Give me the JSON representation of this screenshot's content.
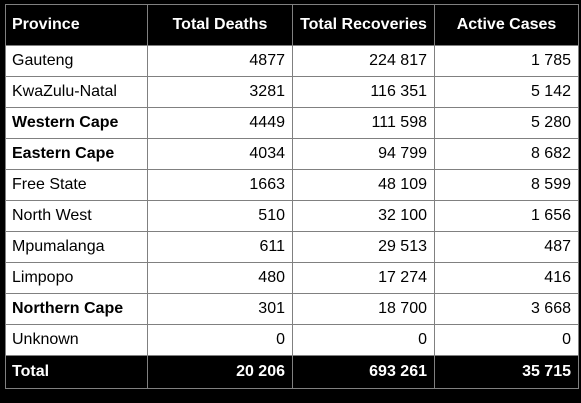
{
  "chart_data": {
    "type": "table",
    "columns": [
      "Province",
      "Total Deaths",
      "Total Recoveries",
      "Active Cases"
    ],
    "rows": [
      {
        "province": "Gauteng",
        "deaths": "4877",
        "recoveries": "224 817",
        "active": "1 785",
        "bold": false
      },
      {
        "province": "KwaZulu-Natal",
        "deaths": "3281",
        "recoveries": "116 351",
        "active": "5 142",
        "bold": false
      },
      {
        "province": "Western Cape",
        "deaths": "4449",
        "recoveries": "111 598",
        "active": "5 280",
        "bold": true
      },
      {
        "province": "Eastern Cape",
        "deaths": "4034",
        "recoveries": "94 799",
        "active": "8 682",
        "bold": true
      },
      {
        "province": "Free State",
        "deaths": "1663",
        "recoveries": "48 109",
        "active": "8 599",
        "bold": false
      },
      {
        "province": "North West",
        "deaths": "510",
        "recoveries": "32 100",
        "active": "1 656",
        "bold": false
      },
      {
        "province": "Mpumalanga",
        "deaths": "611",
        "recoveries": "29 513",
        "active": "487",
        "bold": false
      },
      {
        "province": "Limpopo",
        "deaths": "480",
        "recoveries": "17 274",
        "active": "416",
        "bold": false
      },
      {
        "province": "Northern Cape",
        "deaths": "301",
        "recoveries": "18 700",
        "active": "3 668",
        "bold": true
      },
      {
        "province": "Unknown",
        "deaths": "0",
        "recoveries": "0",
        "active": "0",
        "bold": false
      }
    ],
    "total": {
      "label": "Total",
      "deaths": "20 206",
      "recoveries": "693 261",
      "active": "35 715"
    }
  },
  "colors": {
    "header_bg": "#000000",
    "header_text": "#ffffff",
    "body_bg": "#ffffff",
    "border": "#808080"
  }
}
